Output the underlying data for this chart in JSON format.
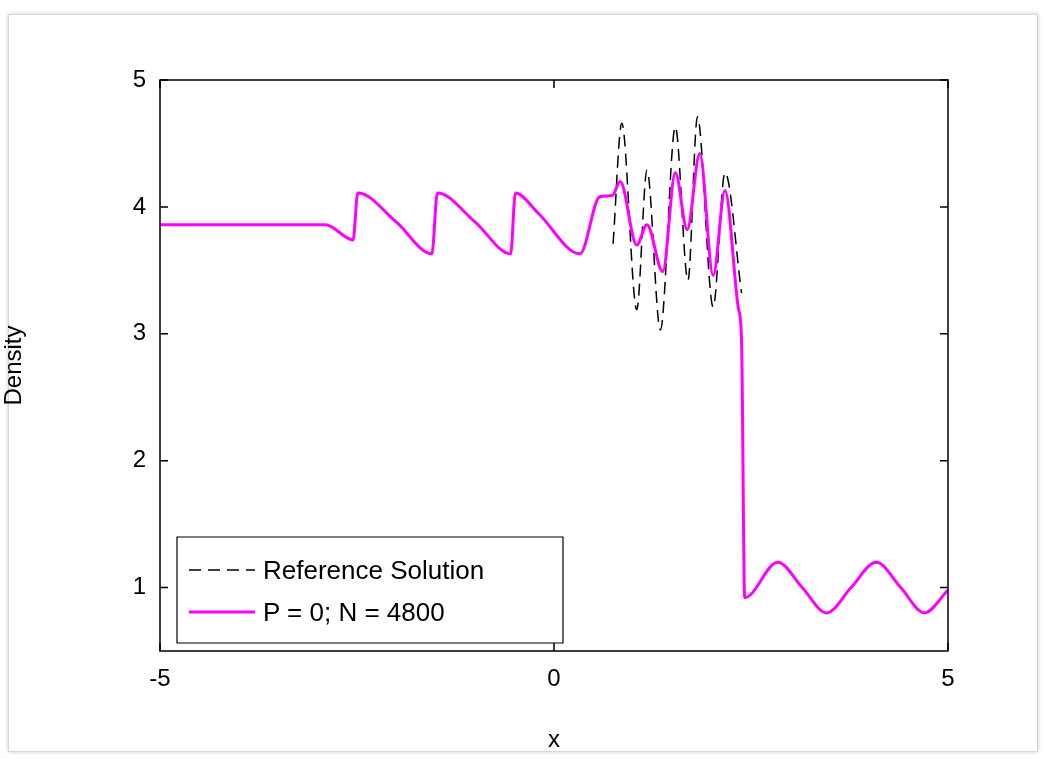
{
  "chart_data": {
    "type": "line",
    "xlabel": "x",
    "ylabel": "Density",
    "xlim": [
      -5,
      5
    ],
    "xticks": [
      -5,
      0,
      5
    ],
    "ylim": [
      0.5,
      5
    ],
    "yticks": [
      1,
      2,
      3,
      4,
      5
    ],
    "grid": false,
    "legend": "bottom left",
    "marker": "none",
    "series": [
      {
        "name": "Reference Solution",
        "color": "#000000",
        "line_style": "dashed",
        "x": [
          0.75,
          0.86,
          1.05,
          1.18,
          1.35,
          1.54,
          1.7,
          1.82,
          2.02,
          2.17,
          2.38
        ],
        "values": [
          3.71,
          4.66,
          3.19,
          4.29,
          3.03,
          4.63,
          3.42,
          4.71,
          3.21,
          4.27,
          3.32
        ]
      },
      {
        "name": "P = 0; N = 4800",
        "color": "#ff00ff",
        "line_style": "solid",
        "x": [
          -5,
          -2.9,
          -2.55,
          -2.49,
          -2.0,
          -1.55,
          -1.48,
          -1.0,
          -0.55,
          -0.49,
          -0.2,
          0.33,
          0.58,
          0.74,
          0.84,
          1.05,
          1.18,
          1.38,
          1.54,
          1.69,
          1.85,
          2.02,
          2.17,
          2.34,
          2.38,
          2.42,
          2.84,
          3.15,
          3.46,
          3.77,
          4.09,
          4.4,
          4.7,
          5
        ],
        "values": [
          3.86,
          3.86,
          3.74,
          4.11,
          3.88,
          3.63,
          4.11,
          3.88,
          3.63,
          4.11,
          3.95,
          3.63,
          4.08,
          4.09,
          4.2,
          3.7,
          3.86,
          3.49,
          4.27,
          3.82,
          4.42,
          3.46,
          4.13,
          3.2,
          2.95,
          0.92,
          1.2,
          1.0,
          0.8,
          1.0,
          1.2,
          1.0,
          0.8,
          0.98
        ]
      }
    ]
  }
}
